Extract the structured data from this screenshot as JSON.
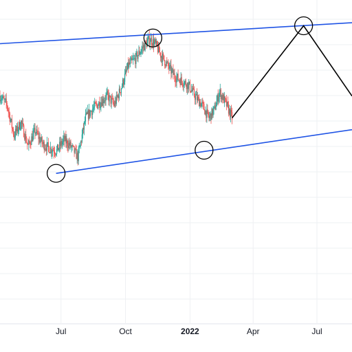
{
  "chart_data": {
    "type": "candlestick",
    "title": "",
    "xlabel": "",
    "ylabel": "",
    "x_axis": {
      "ticks": [
        {
          "label": "Jul",
          "date": "2021-07-01",
          "bold": false
        },
        {
          "label": "Oct",
          "date": "2021-10-01",
          "bold": false
        },
        {
          "label": "2022",
          "date": "2022-01-01",
          "bold": true
        },
        {
          "label": "Apr",
          "date": "2022-04-01",
          "bold": false
        },
        {
          "label": "Jul",
          "date": "2022-07-01",
          "bold": false
        }
      ],
      "range": [
        "2021-04-05",
        "2022-08-20"
      ]
    },
    "grid": true,
    "colors": {
      "up": "#26a69a",
      "down": "#ef5350",
      "channel": "#1e53e5",
      "projection": "#000000",
      "marker": "#000000",
      "grid": "#eef0f3",
      "axis_text": "#131722"
    },
    "price_series": {
      "close_path": [
        [
          "2021-04-05",
          520
        ],
        [
          "2021-04-15",
          500
        ],
        [
          "2021-04-25",
          430
        ],
        [
          "2021-05-05",
          460
        ],
        [
          "2021-05-15",
          405
        ],
        [
          "2021-05-25",
          440
        ],
        [
          "2021-06-05",
          410
        ],
        [
          "2021-06-15",
          400
        ],
        [
          "2021-06-25",
          395
        ],
        [
          "2021-07-05",
          420
        ],
        [
          "2021-07-15",
          405
        ],
        [
          "2021-07-25",
          380
        ],
        [
          "2021-08-05",
          470
        ],
        [
          "2021-08-15",
          490
        ],
        [
          "2021-08-25",
          505
        ],
        [
          "2021-09-05",
          520
        ],
        [
          "2021-09-15",
          500
        ],
        [
          "2021-09-25",
          540
        ],
        [
          "2021-10-05",
          590
        ],
        [
          "2021-10-15",
          605
        ],
        [
          "2021-10-25",
          630
        ],
        [
          "2021-11-05",
          650
        ],
        [
          "2021-11-12",
          640
        ],
        [
          "2021-11-20",
          615
        ],
        [
          "2021-11-30",
          590
        ],
        [
          "2021-12-10",
          565
        ],
        [
          "2021-12-20",
          555
        ],
        [
          "2021-12-30",
          545
        ],
        [
          "2022-01-08",
          520
        ],
        [
          "2022-01-18",
          500
        ],
        [
          "2022-01-28",
          470
        ],
        [
          "2022-02-05",
          490
        ],
        [
          "2022-02-12",
          530
        ],
        [
          "2022-02-22",
          500
        ],
        [
          "2022-03-02",
          470
        ]
      ]
    },
    "channel": {
      "upper": [
        [
          "2021-04-05",
          640
        ],
        [
          "2022-08-20",
          688
        ]
      ],
      "lower": [
        [
          "2021-06-24",
          343
        ],
        [
          "2022-08-20",
          443
        ]
      ]
    },
    "projection": [
      [
        "2022-03-02",
        470
      ],
      [
        "2022-06-12",
        681
      ],
      [
        "2022-08-20",
        520
      ]
    ],
    "markers": [
      {
        "date": "2021-06-24",
        "price": 343
      },
      {
        "date": "2021-11-09",
        "price": 653
      },
      {
        "date": "2022-01-21",
        "price": 396
      },
      {
        "date": "2022-06-12",
        "price": 681
      }
    ]
  }
}
